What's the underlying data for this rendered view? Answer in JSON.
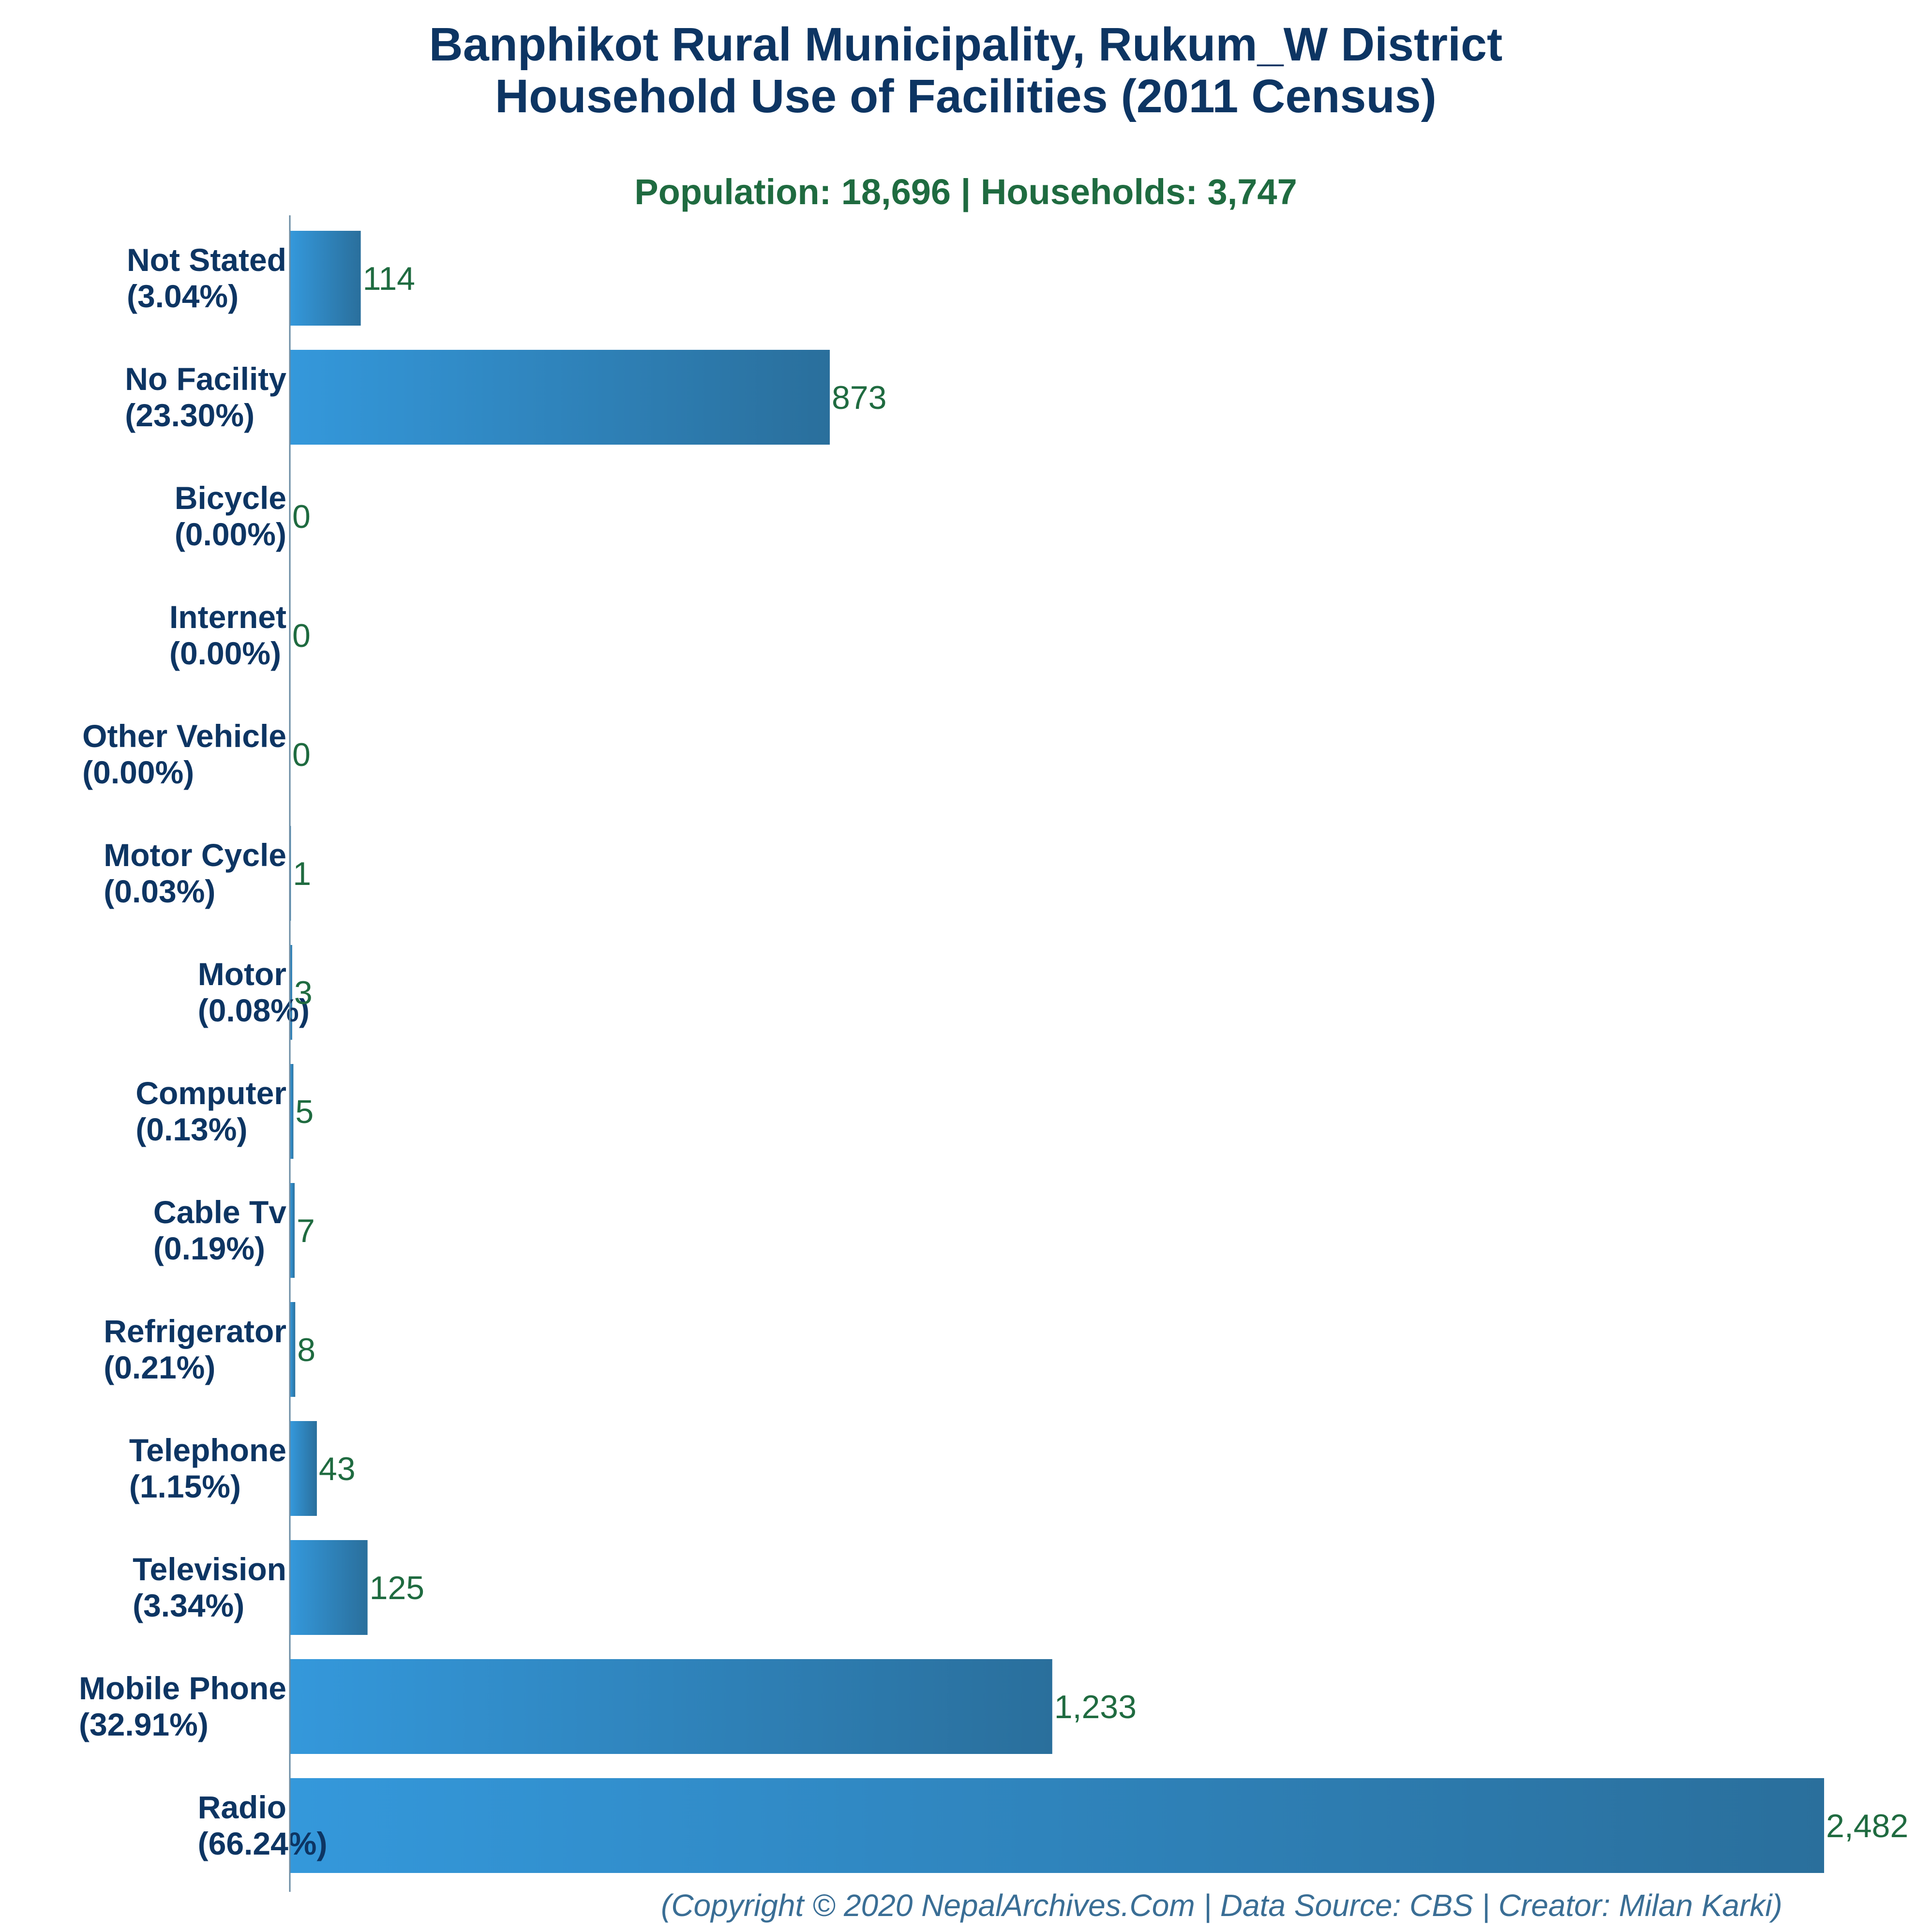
{
  "chart_data": {
    "type": "bar",
    "orientation": "horizontal",
    "title": "Banphikot Rural Municipality, Rukum_W District",
    "title_line2": "Household Use of Facilities (2011 Census)",
    "subtitle": "Population: 18,696 | Households: 3,747",
    "footer": "(Copyright © 2020 NepalArchives.Com | Data Source: CBS | Creator: Milan Karki)",
    "categories": [
      "Not Stated",
      "No Facility",
      "Bicycle",
      "Internet",
      "Other Vehicle",
      "Motor Cycle",
      "Motor",
      "Computer",
      "Cable Tv",
      "Refrigerator",
      "Telephone",
      "Television",
      "Mobile Phone",
      "Radio"
    ],
    "percentages": [
      "(3.04%)",
      "(23.30%)",
      "(0.00%)",
      "(0.00%)",
      "(0.00%)",
      "(0.03%)",
      "(0.08%)",
      "(0.13%)",
      "(0.19%)",
      "(0.21%)",
      "(1.15%)",
      "(3.34%)",
      "(32.91%)",
      "(66.24%)"
    ],
    "values": [
      114,
      873,
      0,
      0,
      0,
      1,
      3,
      5,
      7,
      8,
      43,
      125,
      1233,
      2482
    ],
    "value_labels": [
      "114",
      "873",
      "0",
      "0",
      "0",
      "1",
      "3",
      "5",
      "7",
      "8",
      "43",
      "125",
      "1,233",
      "2,482"
    ],
    "xlim": [
      0,
      2482
    ],
    "grid": false,
    "legend": "none",
    "colors": {
      "title": "#0d3563",
      "subtitle": "#1f6b40",
      "value_label": "#1f6b40",
      "bar_light": "#3498db",
      "bar_dark": "#2a6f9c",
      "axis": "#6a8ba3",
      "footer": "#3a6e95"
    }
  }
}
